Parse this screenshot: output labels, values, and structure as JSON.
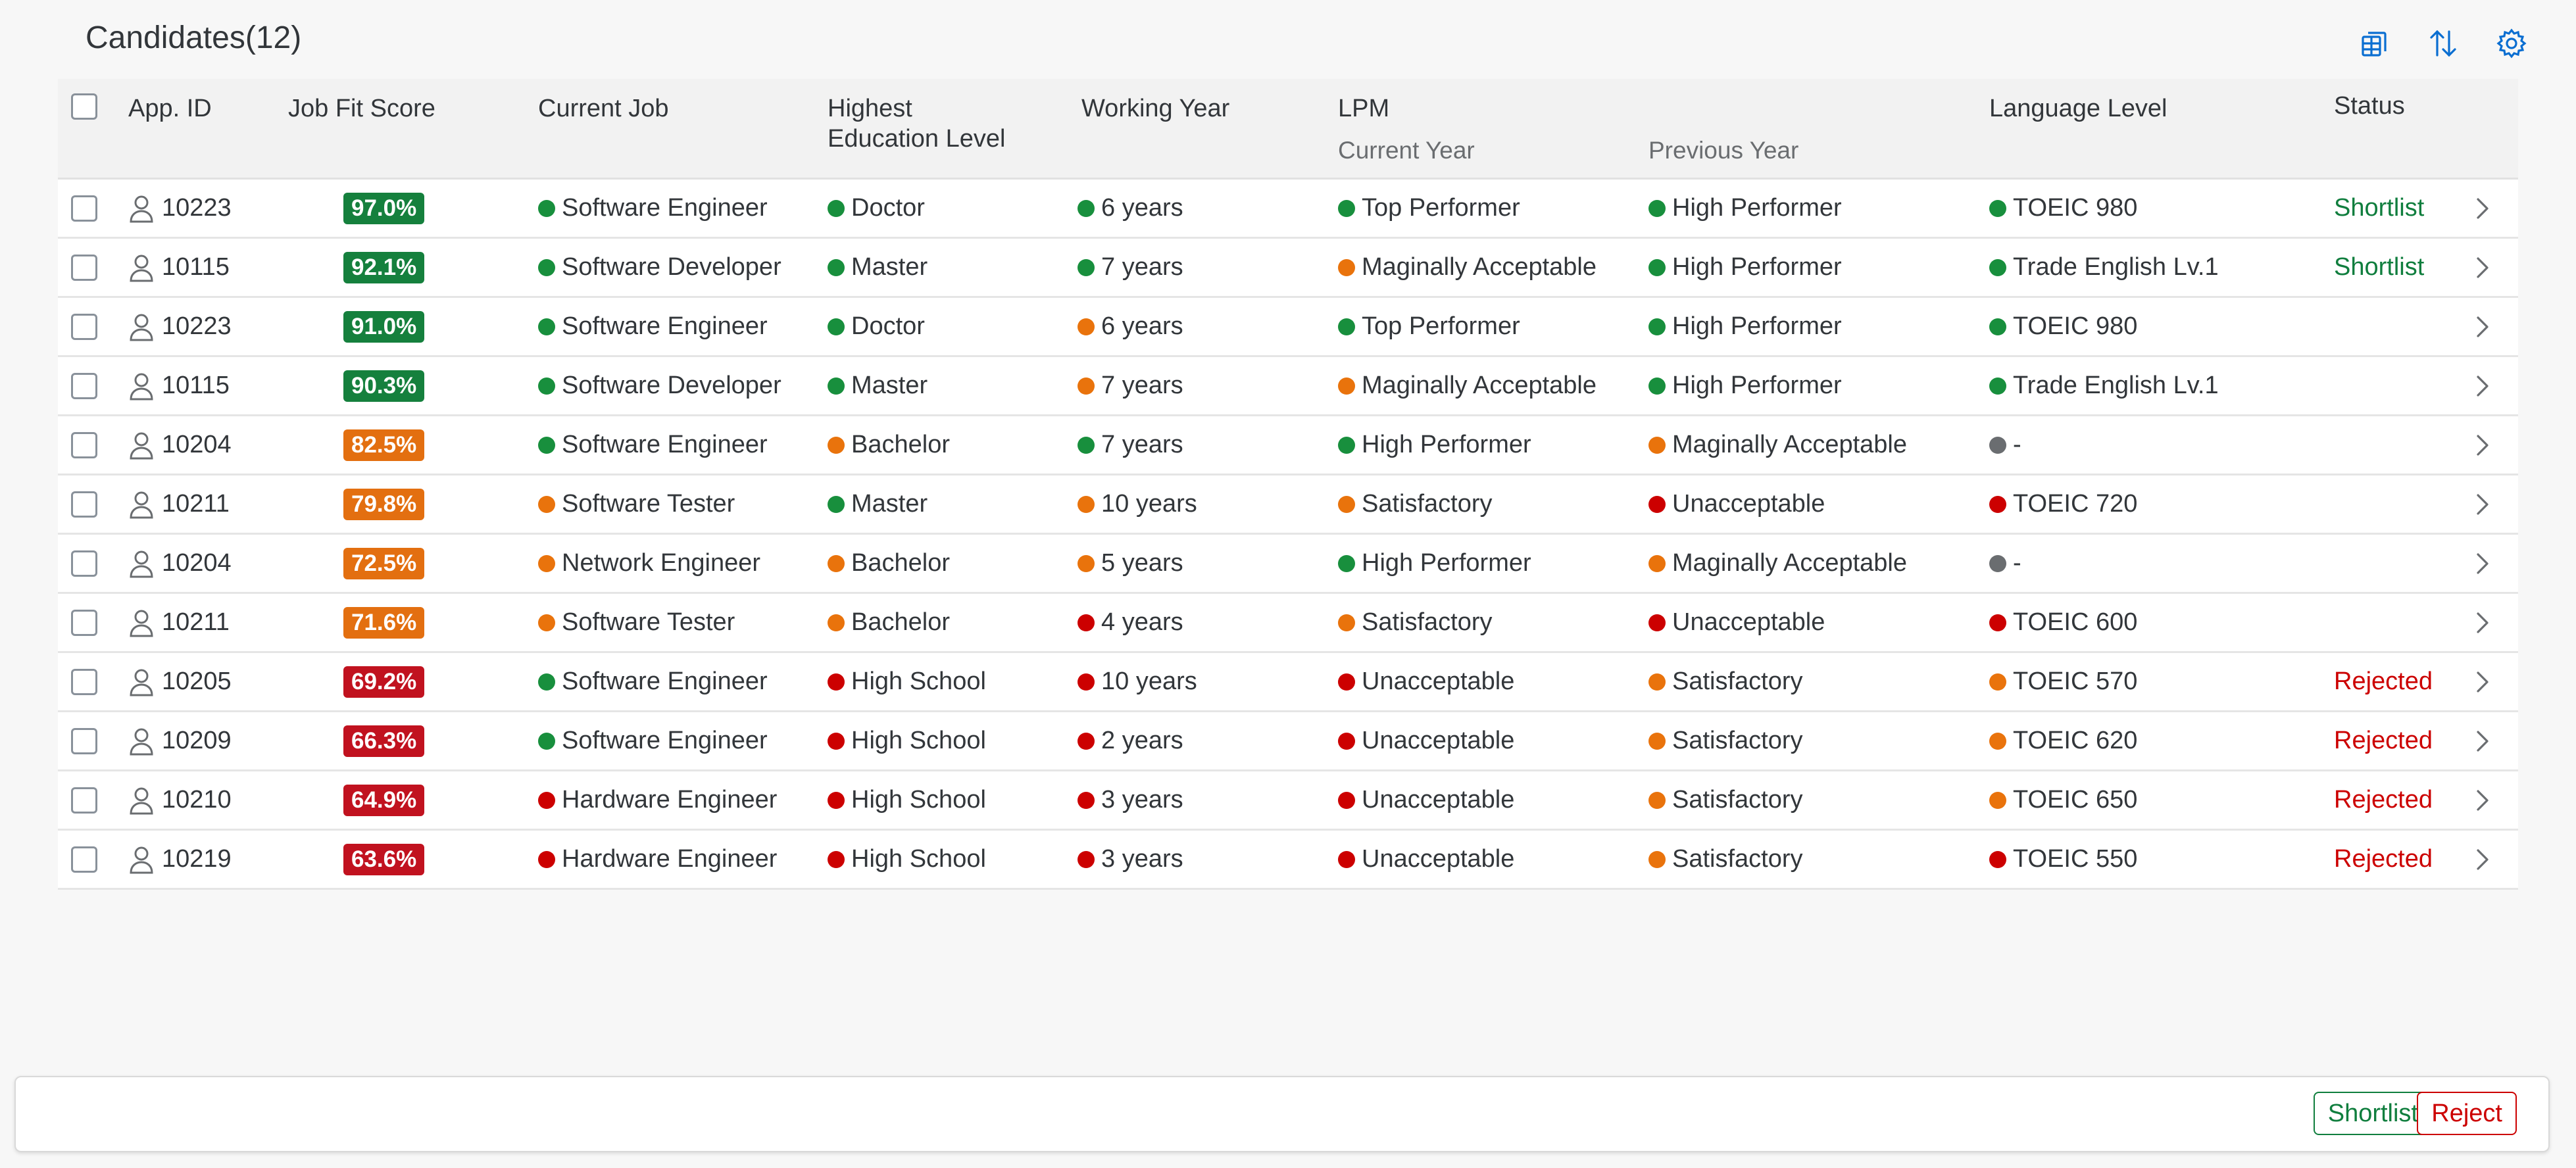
{
  "title": "Candidates(12)",
  "toolbar": {
    "icons": [
      "export-icon",
      "sort-icon",
      "settings-icon"
    ]
  },
  "columns": {
    "app_id": "App. ID",
    "job_fit": "Job Fit Score",
    "current_job": "Current Job",
    "education_line1": "Highest",
    "education_line2": "Education Level",
    "working_year": "Working Year",
    "lpm": "LPM",
    "lpm_current": "Current Year",
    "lpm_previous": "Previous Year",
    "language": "Language Level",
    "status": "Status"
  },
  "colors": {
    "green": "#188f3d",
    "orange": "#e9730c",
    "red": "#cc0000",
    "grey": "#6a6d70",
    "badge_green": "#15803d",
    "badge_orange": "#e36f10",
    "badge_red": "#c1121f",
    "status_green": "#107e3e",
    "status_red": "#cc0000"
  },
  "rows": [
    {
      "id": "10223",
      "score": "97.0%",
      "score_color": "green",
      "job": "Software Engineer",
      "job_c": "green",
      "edu": "Doctor",
      "edu_c": "green",
      "years": "6 years",
      "years_c": "green",
      "lpm_cur": "Top Performer",
      "lpm_cur_c": "green",
      "lpm_prev": "High Performer",
      "lpm_prev_c": "green",
      "lang": "TOEIC 980",
      "lang_c": "green",
      "status": "Shortlist",
      "status_c": "green"
    },
    {
      "id": "10115",
      "score": "92.1%",
      "score_color": "green",
      "job": "Software Developer",
      "job_c": "green",
      "edu": "Master",
      "edu_c": "green",
      "years": "7 years",
      "years_c": "green",
      "lpm_cur": "Maginally Acceptable",
      "lpm_cur_c": "orange",
      "lpm_prev": "High Performer",
      "lpm_prev_c": "green",
      "lang": "Trade English Lv.1",
      "lang_c": "green",
      "status": "Shortlist",
      "status_c": "green"
    },
    {
      "id": "10223",
      "score": "91.0%",
      "score_color": "green",
      "job": "Software Engineer",
      "job_c": "green",
      "edu": "Doctor",
      "edu_c": "green",
      "years": "6 years",
      "years_c": "orange",
      "lpm_cur": "Top Performer",
      "lpm_cur_c": "green",
      "lpm_prev": "High Performer",
      "lpm_prev_c": "green",
      "lang": "TOEIC 980",
      "lang_c": "green",
      "status": "",
      "status_c": "green"
    },
    {
      "id": "10115",
      "score": "90.3%",
      "score_color": "green",
      "job": "Software Developer",
      "job_c": "green",
      "edu": "Master",
      "edu_c": "green",
      "years": "7 years",
      "years_c": "orange",
      "lpm_cur": "Maginally Acceptable",
      "lpm_cur_c": "orange",
      "lpm_prev": "High Performer",
      "lpm_prev_c": "green",
      "lang": "Trade English Lv.1",
      "lang_c": "green",
      "status": "",
      "status_c": "green"
    },
    {
      "id": "10204",
      "score": "82.5%",
      "score_color": "orange",
      "job": "Software Engineer",
      "job_c": "green",
      "edu": "Bachelor",
      "edu_c": "orange",
      "years": "7 years",
      "years_c": "green",
      "lpm_cur": "High Performer",
      "lpm_cur_c": "green",
      "lpm_prev": "Maginally Acceptable",
      "lpm_prev_c": "orange",
      "lang": "-",
      "lang_c": "grey",
      "status": "",
      "status_c": "green"
    },
    {
      "id": "10211",
      "score": "79.8%",
      "score_color": "orange",
      "job": "Software Tester",
      "job_c": "orange",
      "edu": "Master",
      "edu_c": "green",
      "years": "10 years",
      "years_c": "orange",
      "lpm_cur": "Satisfactory",
      "lpm_cur_c": "orange",
      "lpm_prev": "Unacceptable",
      "lpm_prev_c": "red",
      "lang": "TOEIC 720",
      "lang_c": "red",
      "status": "",
      "status_c": "green"
    },
    {
      "id": "10204",
      "score": "72.5%",
      "score_color": "orange",
      "job": "Network Engineer",
      "job_c": "orange",
      "edu": "Bachelor",
      "edu_c": "orange",
      "years": "5 years",
      "years_c": "orange",
      "lpm_cur": "High Performer",
      "lpm_cur_c": "green",
      "lpm_prev": "Maginally Acceptable",
      "lpm_prev_c": "orange",
      "lang": "-",
      "lang_c": "grey",
      "status": "",
      "status_c": "green"
    },
    {
      "id": "10211",
      "score": "71.6%",
      "score_color": "orange",
      "job": "Software Tester",
      "job_c": "orange",
      "edu": "Bachelor",
      "edu_c": "orange",
      "years": "4 years",
      "years_c": "red",
      "lpm_cur": "Satisfactory",
      "lpm_cur_c": "orange",
      "lpm_prev": "Unacceptable",
      "lpm_prev_c": "red",
      "lang": "TOEIC 600",
      "lang_c": "red",
      "status": "",
      "status_c": "green"
    },
    {
      "id": "10205",
      "score": "69.2%",
      "score_color": "red",
      "job": "Software Engineer",
      "job_c": "green",
      "edu": "High School",
      "edu_c": "red",
      "years": "10 years",
      "years_c": "red",
      "lpm_cur": "Unacceptable",
      "lpm_cur_c": "red",
      "lpm_prev": "Satisfactory",
      "lpm_prev_c": "orange",
      "lang": "TOEIC 570",
      "lang_c": "orange",
      "status": "Rejected",
      "status_c": "red"
    },
    {
      "id": "10209",
      "score": "66.3%",
      "score_color": "red",
      "job": "Software Engineer",
      "job_c": "green",
      "edu": "High School",
      "edu_c": "red",
      "years": "2 years",
      "years_c": "red",
      "lpm_cur": "Unacceptable",
      "lpm_cur_c": "red",
      "lpm_prev": "Satisfactory",
      "lpm_prev_c": "orange",
      "lang": "TOEIC 620",
      "lang_c": "orange",
      "status": "Rejected",
      "status_c": "red"
    },
    {
      "id": "10210",
      "score": "64.9%",
      "score_color": "red",
      "job": "Hardware Engineer",
      "job_c": "red",
      "edu": "High School",
      "edu_c": "red",
      "years": "3 years",
      "years_c": "red",
      "lpm_cur": "Unacceptable",
      "lpm_cur_c": "red",
      "lpm_prev": "Satisfactory",
      "lpm_prev_c": "orange",
      "lang": "TOEIC 650",
      "lang_c": "orange",
      "status": "Rejected",
      "status_c": "red"
    },
    {
      "id": "10219",
      "score": "63.6%",
      "score_color": "red",
      "job": "Hardware Engineer",
      "job_c": "red",
      "edu": "High School",
      "edu_c": "red",
      "years": "3 years",
      "years_c": "red",
      "lpm_cur": "Unacceptable",
      "lpm_cur_c": "red",
      "lpm_prev": "Satisfactory",
      "lpm_prev_c": "orange",
      "lang": "TOEIC 550",
      "lang_c": "red",
      "status": "Rejected",
      "status_c": "red"
    }
  ],
  "footer": {
    "shortlist_label": "Shortlist",
    "reject_label": "Reject"
  }
}
